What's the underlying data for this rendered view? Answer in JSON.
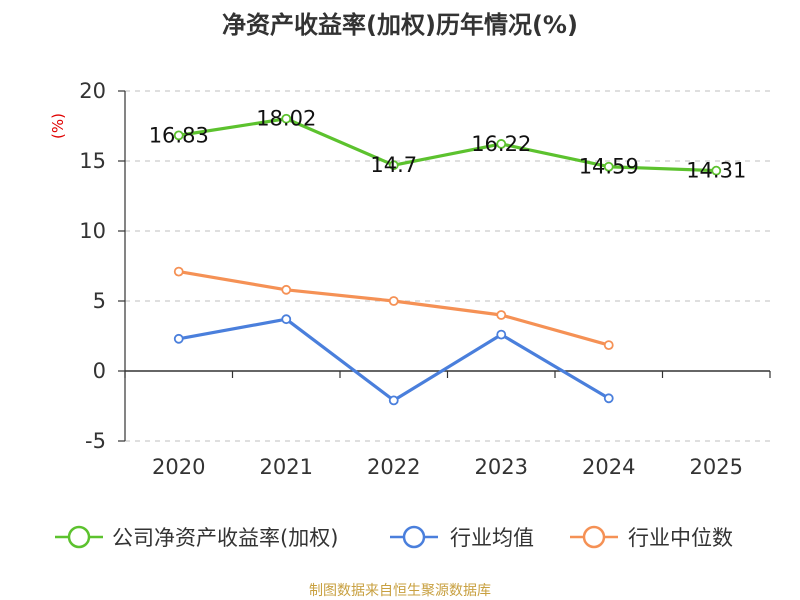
{
  "chart_data": {
    "type": "line",
    "title": "净资产收益率(加权)历年情况(%)",
    "ylabel": "(%)",
    "xlabel": "",
    "categories": [
      "2020",
      "2021",
      "2022",
      "2023",
      "2024",
      "2025"
    ],
    "y_ticks": [
      "20",
      "15",
      "10",
      "5",
      "0",
      "-5"
    ],
    "ylim": [
      -5,
      20
    ],
    "grid": true,
    "legend_position": "bottom",
    "series": [
      {
        "name": "公司净资产收益率(加权)",
        "color": "#5cc22e",
        "values": [
          16.83,
          18.02,
          14.7,
          16.22,
          14.59,
          14.31
        ],
        "labels": [
          "16.83",
          "18.02",
          "14.7",
          "16.22",
          "14.59",
          "14.31"
        ]
      },
      {
        "name": "行业均值",
        "color": "#4a7fdc",
        "values": [
          2.3,
          3.7,
          -2.1,
          2.6,
          -1.95,
          null
        ]
      },
      {
        "name": "行业中位数",
        "color": "#f59155",
        "values": [
          7.1,
          5.8,
          5.0,
          4.0,
          1.85,
          null
        ]
      }
    ],
    "source": "制图数据来自恒生聚源数据库"
  }
}
